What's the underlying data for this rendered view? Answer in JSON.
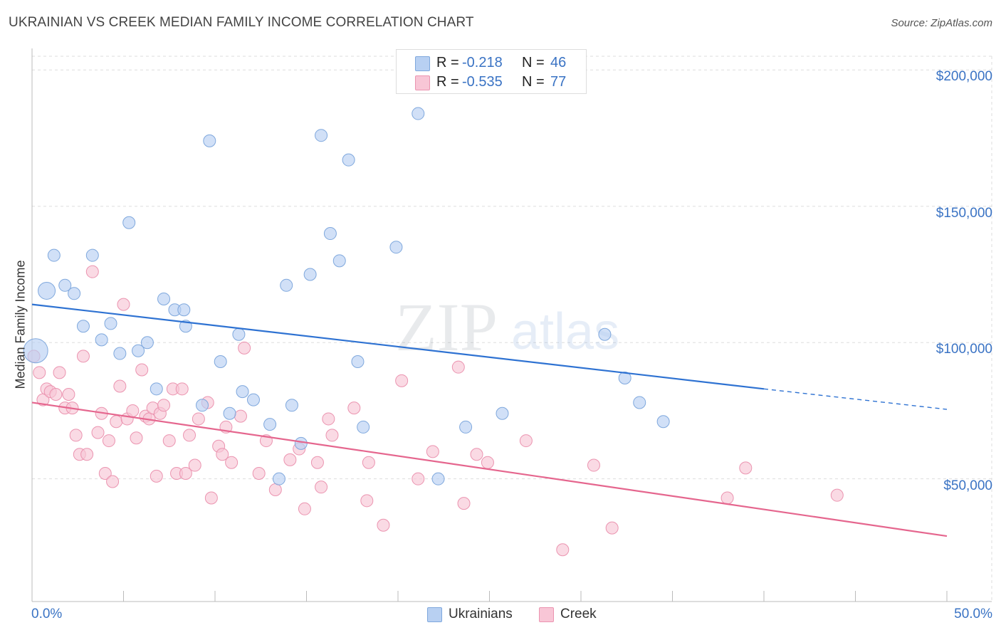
{
  "title": "UKRAINIAN VS CREEK MEDIAN FAMILY INCOME CORRELATION CHART",
  "source": "Source: ZipAtlas.com",
  "watermark": {
    "zip": "ZIP",
    "atlas": "atlas"
  },
  "stats": {
    "ukrainians": {
      "r_label": "R =",
      "r_value": "-0.218",
      "n_label": "N =",
      "n_value": "46"
    },
    "creek": {
      "r_label": "R =",
      "r_value": "-0.535",
      "n_label": "N =",
      "n_value": "77"
    }
  },
  "legend": {
    "ukrainians": "Ukrainians",
    "creek": "Creek"
  },
  "colors": {
    "ukrainians_fill": "#b8d0f2",
    "ukrainians_stroke": "#7fa8dd",
    "ukrainians_line": "#2e72d2",
    "creek_fill": "#f8c6d6",
    "creek_stroke": "#eb94b0",
    "creek_line": "#e5668e",
    "tick_text": "#3a73c4",
    "grid": "#dddddd"
  },
  "chart_data": {
    "type": "scatter",
    "title": "UKRAINIAN VS CREEK MEDIAN FAMILY INCOME CORRELATION CHART",
    "xlabel": "",
    "ylabel": "Median Family Income",
    "xlim": [
      0,
      50
    ],
    "ylim": [
      5000,
      210000
    ],
    "x_tick_labels": [
      "0.0%",
      "50.0%"
    ],
    "y_ticks": [
      50000,
      100000,
      150000,
      200000
    ],
    "y_tick_labels": [
      "$50,000",
      "$100,000",
      "$150,000",
      "$200,000"
    ],
    "grid": true,
    "legend_position": "bottom-center",
    "series": [
      {
        "name": "Ukrainians",
        "points": [
          [
            0.2,
            97000
          ],
          [
            0.8,
            119000
          ],
          [
            1.2,
            132000
          ],
          [
            1.8,
            121000
          ],
          [
            2.3,
            118000
          ],
          [
            2.8,
            106000
          ],
          [
            3.3,
            132000
          ],
          [
            3.8,
            101000
          ],
          [
            4.3,
            107000
          ],
          [
            4.8,
            96000
          ],
          [
            5.3,
            144000
          ],
          [
            5.8,
            97000
          ],
          [
            6.3,
            100000
          ],
          [
            6.8,
            83000
          ],
          [
            7.2,
            116000
          ],
          [
            7.8,
            112000
          ],
          [
            8.3,
            112000
          ],
          [
            8.4,
            106000
          ],
          [
            9.3,
            77000
          ],
          [
            9.7,
            174000
          ],
          [
            10.3,
            93000
          ],
          [
            10.8,
            74000
          ],
          [
            11.3,
            103000
          ],
          [
            11.5,
            82000
          ],
          [
            12.1,
            79000
          ],
          [
            13.0,
            70000
          ],
          [
            13.5,
            50000
          ],
          [
            13.9,
            121000
          ],
          [
            14.2,
            77000
          ],
          [
            14.7,
            63000
          ],
          [
            15.2,
            125000
          ],
          [
            15.8,
            176000
          ],
          [
            16.3,
            140000
          ],
          [
            16.8,
            130000
          ],
          [
            17.3,
            167000
          ],
          [
            17.8,
            93000
          ],
          [
            18.1,
            69000
          ],
          [
            19.9,
            135000
          ],
          [
            21.1,
            184000
          ],
          [
            22.2,
            50000
          ],
          [
            23.7,
            69000
          ],
          [
            25.7,
            74000
          ],
          [
            31.3,
            103000
          ],
          [
            32.4,
            87000
          ],
          [
            33.2,
            78000
          ],
          [
            34.5,
            71000
          ]
        ],
        "regression": {
          "x_start": 0,
          "y_start": 114000,
          "x_solid_end": 40,
          "y_solid_end": 83000,
          "x_end": 50,
          "y_end": 75500
        }
      },
      {
        "name": "Creek",
        "points": [
          [
            0.1,
            95000
          ],
          [
            0.4,
            89000
          ],
          [
            0.6,
            79000
          ],
          [
            0.8,
            83000
          ],
          [
            1.0,
            82000
          ],
          [
            1.3,
            81000
          ],
          [
            1.5,
            89000
          ],
          [
            1.8,
            76000
          ],
          [
            2.0,
            81000
          ],
          [
            2.2,
            76000
          ],
          [
            2.4,
            66000
          ],
          [
            2.6,
            59000
          ],
          [
            2.8,
            95000
          ],
          [
            3.0,
            59000
          ],
          [
            3.3,
            126000
          ],
          [
            3.6,
            67000
          ],
          [
            3.8,
            74000
          ],
          [
            4.0,
            52000
          ],
          [
            4.2,
            64000
          ],
          [
            4.4,
            49000
          ],
          [
            4.6,
            71000
          ],
          [
            4.8,
            84000
          ],
          [
            5.0,
            114000
          ],
          [
            5.2,
            72000
          ],
          [
            5.5,
            75000
          ],
          [
            5.7,
            65000
          ],
          [
            6.0,
            90000
          ],
          [
            6.2,
            73000
          ],
          [
            6.4,
            72000
          ],
          [
            6.6,
            76000
          ],
          [
            6.8,
            51000
          ],
          [
            7.0,
            74000
          ],
          [
            7.2,
            77000
          ],
          [
            7.5,
            64000
          ],
          [
            7.7,
            83000
          ],
          [
            7.9,
            52000
          ],
          [
            8.2,
            83000
          ],
          [
            8.4,
            52000
          ],
          [
            8.6,
            66000
          ],
          [
            8.9,
            55000
          ],
          [
            9.1,
            72000
          ],
          [
            9.6,
            78000
          ],
          [
            9.8,
            43000
          ],
          [
            10.2,
            62000
          ],
          [
            10.6,
            69000
          ],
          [
            10.9,
            56000
          ],
          [
            10.4,
            59000
          ],
          [
            11.4,
            73000
          ],
          [
            11.6,
            98000
          ],
          [
            12.4,
            52000
          ],
          [
            12.8,
            64000
          ],
          [
            13.3,
            46000
          ],
          [
            14.1,
            57000
          ],
          [
            14.6,
            61000
          ],
          [
            14.9,
            39000
          ],
          [
            15.6,
            56000
          ],
          [
            15.8,
            47000
          ],
          [
            16.2,
            72000
          ],
          [
            16.4,
            66000
          ],
          [
            17.6,
            76000
          ],
          [
            18.3,
            42000
          ],
          [
            18.4,
            56000
          ],
          [
            19.2,
            33000
          ],
          [
            20.2,
            86000
          ],
          [
            21.1,
            50000
          ],
          [
            21.9,
            60000
          ],
          [
            23.3,
            91000
          ],
          [
            23.6,
            41000
          ],
          [
            24.3,
            59000
          ],
          [
            24.9,
            56000
          ],
          [
            27.0,
            64000
          ],
          [
            29.0,
            24000
          ],
          [
            30.7,
            55000
          ],
          [
            31.7,
            32000
          ],
          [
            38.0,
            43000
          ],
          [
            39.0,
            54000
          ],
          [
            44.0,
            44000
          ]
        ],
        "regression": {
          "x_start": 0,
          "y_start": 78000,
          "x_end": 50,
          "y_end": 29000
        }
      }
    ]
  }
}
